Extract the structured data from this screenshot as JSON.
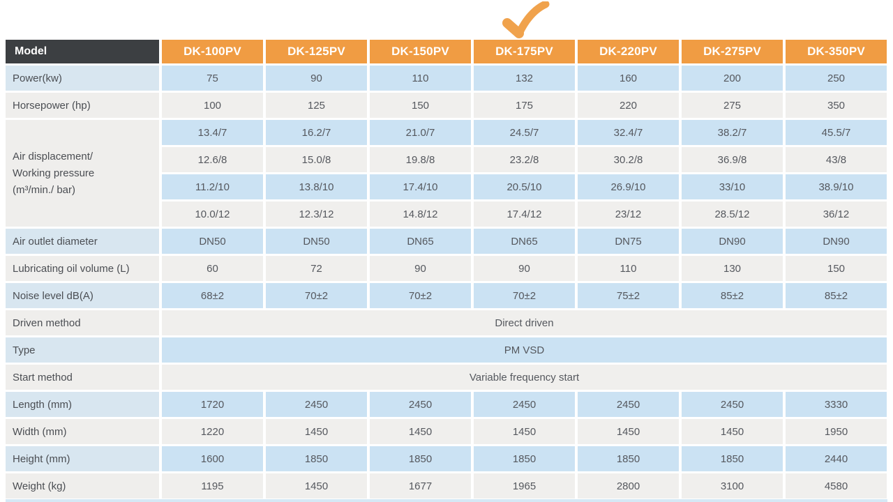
{
  "colors": {
    "header_dark": "#3C3F42",
    "header_orange": "#F09C43",
    "row_blue": "#CBE2F3",
    "row_gray": "#F0EFED",
    "check_orange": "#F0A24C"
  },
  "checkmark": {
    "icon": "check-icon",
    "marks_column": "DK-175PV"
  },
  "table": {
    "header": {
      "label": "Model",
      "columns": [
        "DK-100PV",
        "DK-125PV",
        "DK-150PV",
        "DK-175PV",
        "DK-220PV",
        "DK-275PV",
        "DK-350PV"
      ]
    },
    "rows": [
      {
        "type": "normal",
        "shade": "blue",
        "label": "Power(kw)",
        "values": [
          "75",
          "90",
          "110",
          "132",
          "160",
          "200",
          "250"
        ]
      },
      {
        "type": "normal",
        "shade": "gray",
        "label": "Horsepower (hp)",
        "values": [
          "100",
          "125",
          "150",
          "175",
          "220",
          "275",
          "350"
        ]
      },
      {
        "type": "group",
        "shade": "gray",
        "label_lines": [
          "Air displacement/",
          "Working pressure",
          "(m³/min./ bar)"
        ],
        "rows": [
          {
            "shade": "blue",
            "values": [
              "13.4/7",
              "16.2/7",
              "21.0/7",
              "24.5/7",
              "32.4/7",
              "38.2/7",
              "45.5/7"
            ]
          },
          {
            "shade": "gray",
            "values": [
              "12.6/8",
              "15.0/8",
              "19.8/8",
              "23.2/8",
              "30.2/8",
              "36.9/8",
              "43/8"
            ]
          },
          {
            "shade": "blue",
            "values": [
              "11.2/10",
              "13.8/10",
              "17.4/10",
              "20.5/10",
              "26.9/10",
              "33/10",
              "38.9/10"
            ]
          },
          {
            "shade": "gray",
            "values": [
              "10.0/12",
              "12.3/12",
              "14.8/12",
              "17.4/12",
              "23/12",
              "28.5/12",
              "36/12"
            ]
          }
        ]
      },
      {
        "type": "normal",
        "shade": "blue",
        "label": "Air outlet diameter",
        "values": [
          "DN50",
          "DN50",
          "DN65",
          "DN65",
          "DN75",
          "DN90",
          "DN90"
        ]
      },
      {
        "type": "normal",
        "shade": "gray",
        "label": "Lubricating oil volume (L)",
        "values": [
          "60",
          "72",
          "90",
          "90",
          "110",
          "130",
          "150"
        ]
      },
      {
        "type": "normal",
        "shade": "blue",
        "label": "Noise level dB(A)",
        "values": [
          "68±2",
          "70±2",
          "70±2",
          "70±2",
          "75±2",
          "85±2",
          "85±2"
        ]
      },
      {
        "type": "span",
        "shade": "gray",
        "label": "Driven method",
        "value": "Direct driven"
      },
      {
        "type": "span",
        "shade": "blue",
        "label": "Type",
        "value": "PM VSD"
      },
      {
        "type": "span",
        "shade": "gray",
        "label": "Start method",
        "value": "Variable frequency start"
      },
      {
        "type": "normal",
        "shade": "blue",
        "label": "Length (mm)",
        "values": [
          "1720",
          "2450",
          "2450",
          "2450",
          "2450",
          "2450",
          "3330"
        ]
      },
      {
        "type": "normal",
        "shade": "gray",
        "label": "Width (mm)",
        "values": [
          "1220",
          "1450",
          "1450",
          "1450",
          "1450",
          "1450",
          "1950"
        ]
      },
      {
        "type": "normal",
        "shade": "blue",
        "label": "Height (mm)",
        "values": [
          "1600",
          "1850",
          "1850",
          "1850",
          "1850",
          "1850",
          "2440"
        ]
      },
      {
        "type": "normal",
        "shade": "gray",
        "label": "Weight (kg)",
        "values": [
          "1195",
          "1450",
          "1677",
          "1965",
          "2800",
          "3100",
          "4580"
        ]
      }
    ]
  }
}
